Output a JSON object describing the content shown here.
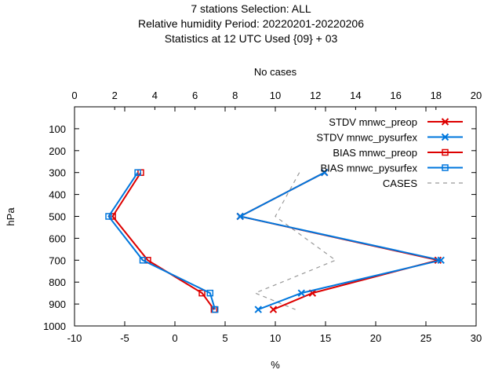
{
  "title_lines": [
    "7 stations Selection: ALL",
    "Relative humidity  Period: 20220201-20220206",
    "Statistics at 12 UTC  Used {09} + 03"
  ],
  "chart_data": {
    "type": "line",
    "title": "7 stations Selection: ALL / Relative humidity  Period: 20220201-20220206 / Statistics at 12 UTC  Used {09} + 03",
    "xlabel": "%",
    "x2label": "No cases",
    "ylabel": "hPa",
    "xlim": [
      -10,
      30
    ],
    "x2lim": [
      0,
      20
    ],
    "ylim": [
      1000,
      0
    ],
    "y_inverted": true,
    "grid": false,
    "legend_position": "top-right",
    "x_ticks": [
      "-10",
      "-5",
      "0",
      "5",
      "10",
      "15",
      "20",
      "25",
      "30"
    ],
    "x2_ticks": [
      "0",
      "2",
      "4",
      "6",
      "8",
      "10",
      "12",
      "14",
      "16",
      "18",
      "20"
    ],
    "y_ticks": [
      "100",
      "200",
      "300",
      "400",
      "500",
      "600",
      "700",
      "800",
      "900",
      "1000"
    ],
    "series": [
      {
        "name": "STDV mnwc_preop",
        "color": "#dd0000",
        "marker": "x",
        "dash": "solid",
        "axis": "x",
        "points": [
          [
            14.9,
            300
          ],
          [
            6.5,
            500
          ],
          [
            26.2,
            700
          ],
          [
            13.7,
            850
          ],
          [
            9.8,
            925
          ]
        ]
      },
      {
        "name": "STDV mnwc_pysurfex",
        "color": "#0077dd",
        "marker": "x",
        "dash": "solid",
        "axis": "x",
        "points": [
          [
            14.9,
            300
          ],
          [
            6.5,
            500
          ],
          [
            26.5,
            700
          ],
          [
            12.6,
            850
          ],
          [
            8.3,
            925
          ]
        ]
      },
      {
        "name": "BIAS mnwc_preop",
        "color": "#dd0000",
        "marker": "square",
        "dash": "solid",
        "axis": "x",
        "points": [
          [
            -3.4,
            300
          ],
          [
            -6.2,
            500
          ],
          [
            -2.7,
            700
          ],
          [
            2.7,
            850
          ],
          [
            3.9,
            925
          ]
        ]
      },
      {
        "name": "BIAS mnwc_pysurfex",
        "color": "#0077dd",
        "marker": "square",
        "dash": "solid",
        "axis": "x",
        "points": [
          [
            -3.7,
            300
          ],
          [
            -6.6,
            500
          ],
          [
            -3.2,
            700
          ],
          [
            3.5,
            850
          ],
          [
            4.0,
            925
          ]
        ]
      },
      {
        "name": "CASES",
        "color": "#999999",
        "marker": "none",
        "dash": "dashed",
        "axis": "x2",
        "points": [
          [
            11.2,
            300
          ],
          [
            10.0,
            500
          ],
          [
            13.0,
            700
          ],
          [
            9.0,
            850
          ],
          [
            11.0,
            925
          ]
        ]
      }
    ]
  }
}
